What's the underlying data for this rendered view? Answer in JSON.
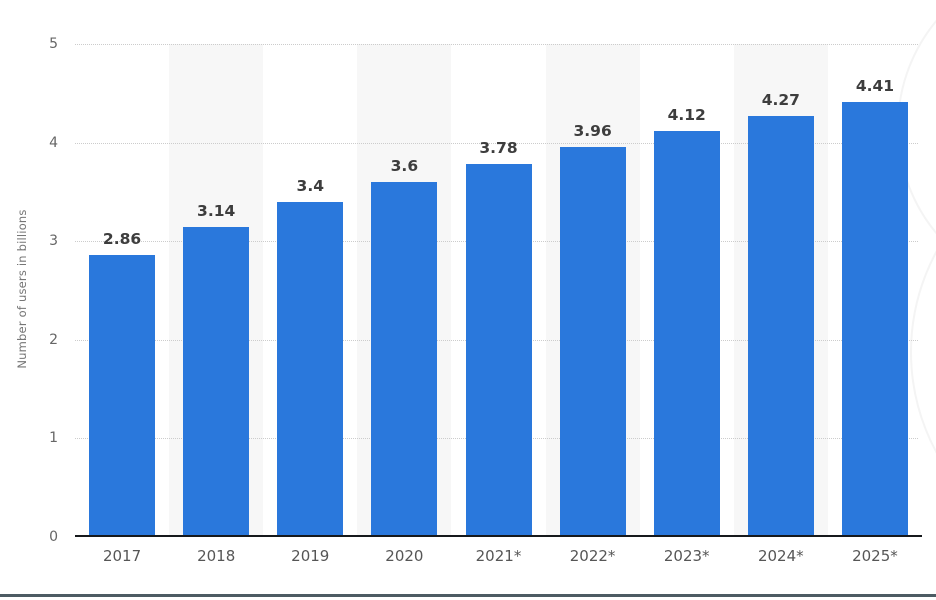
{
  "chart_data": {
    "type": "bar",
    "title": "",
    "categories": [
      "2017",
      "2018",
      "2019",
      "2020",
      "2021*",
      "2022*",
      "2023*",
      "2024*",
      "2025*"
    ],
    "values": [
      2.86,
      3.14,
      3.4,
      3.6,
      3.78,
      3.96,
      4.12,
      4.27,
      4.41
    ],
    "values_display": [
      "2.86",
      "3.14",
      "3.4",
      "3.6",
      "3.78",
      "3.96",
      "4.12",
      "4.27",
      "4.41"
    ],
    "xlabel": "",
    "ylabel": "Number of users in billions",
    "ylim": [
      0,
      5
    ],
    "yticks": [
      0,
      1,
      2,
      3,
      4,
      5
    ],
    "grid": "horizontal-dotted",
    "legend": "none",
    "zebra_striped_categories": [
      1,
      3,
      5,
      7
    ]
  },
  "colors": {
    "bar": "#2a78dc",
    "stripe": "#f7f7f7",
    "gridline": "#cccccc",
    "axis_line": "#16191c",
    "footer_bar": "#4d5b63",
    "value_label": "#3d3d3d",
    "category_label": "#565656",
    "tick_label": "#666666",
    "axis_title": "#767676"
  }
}
